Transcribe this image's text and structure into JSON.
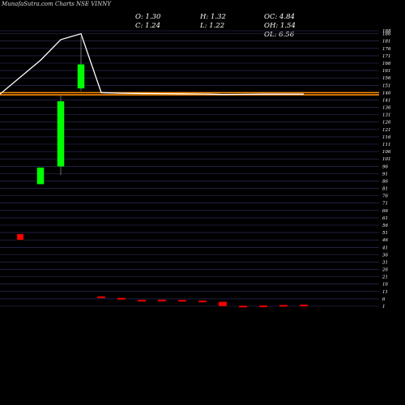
{
  "header": {
    "title": "MunafaSutra.com Charts NSE VINNY",
    "ohlc": {
      "o": "O: 1.30",
      "h": "H: 1.32",
      "oc": "OC: 4.84",
      "c": "C: 1.24",
      "l": "L: 1.22",
      "oh": "OH: 1.54",
      "ol": "OL: 6.56"
    }
  },
  "colors": {
    "background": "#000000",
    "bullish": "#00ff00",
    "bearish": "#ff0000",
    "price_line": "#ffffff",
    "ma_line": "#ff8c00",
    "grid": "#333366"
  },
  "chart_data": {
    "type": "candlestick",
    "title": "MunafaSutra.com Charts NSE VINNY",
    "ylim": [
      0,
      188
    ],
    "grid": true,
    "y_ticks": [
      188,
      186,
      181,
      176,
      171,
      166,
      161,
      156,
      151,
      146,
      141,
      136,
      131,
      126,
      121,
      116,
      111,
      106,
      101,
      96,
      91,
      86,
      81,
      76,
      71,
      66,
      61,
      56,
      51,
      46,
      41,
      36,
      31,
      26,
      21,
      16,
      11,
      6,
      1
    ],
    "tick_labels": {
      "188": "188",
      "186": "186",
      "181": "181",
      "176": "176",
      "171": "171",
      "166": "166",
      "161": "161",
      "156": "156",
      "151": "151",
      "146": "146",
      "141": "141",
      "136": "136",
      "131": "131",
      "126": "126",
      "121": "121",
      "116": "116",
      "111": "111",
      "106": "106",
      "101": "101",
      "96": "96",
      "91": "91",
      "86": "86",
      "81": "81",
      "76": "76",
      "71": "71",
      "66": "66",
      "61": "61",
      "56": "56",
      "51": "51",
      "46": "46",
      "41": "41",
      "36": "36",
      "31": "31",
      "26": "26",
      "21": "21",
      "16": "16",
      "11": "11",
      "6": "6",
      "1": "1"
    },
    "candles": [
      {
        "o": 50,
        "h": 50,
        "l": 46,
        "c": 46
      },
      {
        "o": 84,
        "h": 95,
        "l": 84,
        "c": 95
      },
      {
        "o": 96,
        "h": 144,
        "l": 90,
        "c": 140
      },
      {
        "o": 149,
        "h": 184,
        "l": 147,
        "c": 165
      },
      {
        "o": 7.6,
        "h": 7.6,
        "l": 6.6,
        "c": 6.6
      },
      {
        "o": 6.6,
        "h": 6.6,
        "l": 5.8,
        "c": 5.8
      },
      {
        "o": 5.3,
        "h": 5.3,
        "l": 4.6,
        "c": 4.6
      },
      {
        "o": 5.4,
        "h": 5.4,
        "l": 4.6,
        "c": 4.6
      },
      {
        "o": 5.2,
        "h": 5.2,
        "l": 4.4,
        "c": 4.4
      },
      {
        "o": 4.8,
        "h": 4.8,
        "l": 4.0,
        "c": 4.0
      },
      {
        "o": 4.0,
        "h": 4.0,
        "l": 1.0,
        "c": 1.0
      },
      {
        "o": 1.3,
        "h": 1.32,
        "l": 1.22,
        "c": 1.24
      },
      {
        "o": 1.5,
        "h": 1.5,
        "l": 1.2,
        "c": 1.2
      },
      {
        "o": 1.8,
        "h": 1.8,
        "l": 1.4,
        "c": 1.4
      },
      {
        "o": 2.0,
        "h": 2.0,
        "l": 1.5,
        "c": 1.5
      }
    ],
    "price_line": [
      {
        "x": 0,
        "y": 145
      },
      {
        "x": 1,
        "y": 168
      },
      {
        "x": 2,
        "y": 182
      },
      {
        "x": 3,
        "y": 186
      },
      {
        "x": 4,
        "y": 146
      },
      {
        "x": 5,
        "y": 145.6
      },
      {
        "x": 6,
        "y": 145.4
      },
      {
        "x": 7,
        "y": 145.3
      },
      {
        "x": 8,
        "y": 145.2
      },
      {
        "x": 9,
        "y": 145.1
      },
      {
        "x": 10,
        "y": 144.8
      },
      {
        "x": 11,
        "y": 144.9
      },
      {
        "x": 12,
        "y": 145.0
      },
      {
        "x": 13,
        "y": 145.0
      },
      {
        "x": 14,
        "y": 145.0
      }
    ],
    "ma_lines": [
      {
        "y": 146
      },
      {
        "y": 144.5
      }
    ]
  }
}
